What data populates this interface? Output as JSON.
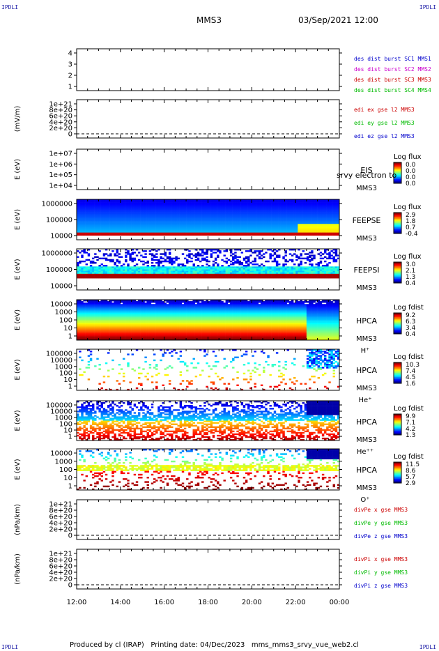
{
  "corner_label": "IPDLI",
  "header": {
    "title": "MMS3",
    "date": "03/Sep/2021 12:00"
  },
  "footer": {
    "produced_by": "Produced by cl (IRAP)",
    "printing_date": "Printing date: 04/Dec/2023",
    "filename": "mms_mms3_srvy_vue_web2.cl"
  },
  "colors": {
    "mms1": "#0000cc",
    "mms2": "#cc00cc",
    "mms3": "#cc0000",
    "mms4": "#00bb00",
    "axis": "#000000"
  },
  "chart_data": [
    {
      "type": "line",
      "panel": "burst",
      "ylabel": "",
      "yticks": [
        "4",
        "3",
        "2",
        "1"
      ],
      "legend": [
        {
          "text": "des dist burst SC1 MMS1",
          "color": "#0000cc"
        },
        {
          "text": "des dist burst SC2 MMS2",
          "color": "#cc00cc"
        },
        {
          "text": "des dist burst SC3 MMS3",
          "color": "#cc0000"
        },
        {
          "text": "des dist burst SC4 MMS4",
          "color": "#00bb00"
        }
      ]
    },
    {
      "type": "line",
      "panel": "edi",
      "ylabel": "(mV/m)",
      "yticks": [
        "1e+21",
        "8e+20",
        "6e+20",
        "4e+20",
        "2e+20",
        "0"
      ],
      "legend": [
        {
          "text": "edi ex gse l2 MMS3",
          "color": "#cc0000"
        },
        {
          "text": "edi ey gse l2 MMS3",
          "color": "#00bb00"
        },
        {
          "text": "edi ez gse l2 MMS3",
          "color": "#0000cc"
        }
      ]
    },
    {
      "type": "heatmap",
      "panel": "eis",
      "ylabel": "E (eV)",
      "yticks": [
        "1e+07",
        "1e+06",
        "1e+05",
        "1e+04"
      ],
      "labels": [
        "EIS",
        "MMS3"
      ],
      "overlay": "srvy electron to",
      "cbar_title": "Log flux",
      "cbar_ticks": [
        "0.0",
        "0.0",
        "0.0",
        "0.0"
      ]
    },
    {
      "type": "heatmap",
      "panel": "feepse",
      "ylabel": "E (eV)",
      "yticks": [
        "1000000",
        "100000",
        "10000"
      ],
      "labels": [
        "FEEPSE",
        "MMS3"
      ],
      "cbar_title": "Log flux",
      "cbar_ticks": [
        "2.9",
        "1.8",
        "0.7",
        "-0.4"
      ]
    },
    {
      "type": "heatmap",
      "panel": "feepsi",
      "ylabel": "E (eV)",
      "yticks": [
        "1000000",
        "100000",
        "10000"
      ],
      "labels": [
        "FEEPSI",
        "MMS3"
      ],
      "cbar_title": "Log flux",
      "cbar_ticks": [
        "3.0",
        "2.1",
        "1.3",
        "0.4"
      ]
    },
    {
      "type": "heatmap",
      "panel": "hpca_h",
      "ylabel": "E (eV)",
      "yticks": [
        "10000",
        "1000",
        "100",
        "10",
        "1"
      ],
      "labels": [
        "HPCA",
        "MMS3",
        "H⁺"
      ],
      "cbar_title": "Log fdist",
      "cbar_ticks": [
        "9.2",
        "6.3",
        "3.4",
        "0.4"
      ]
    },
    {
      "type": "heatmap",
      "panel": "hpca_he",
      "ylabel": "E (eV)",
      "yticks": [
        "100000",
        "10000",
        "1000",
        "100",
        "10",
        "1"
      ],
      "labels": [
        "HPCA",
        "MMS3",
        "He⁺"
      ],
      "cbar_title": "Log fdist",
      "cbar_ticks": [
        "10.3",
        "7.4",
        "4.5",
        "1.6"
      ]
    },
    {
      "type": "heatmap",
      "panel": "hpca_he2",
      "ylabel": "E (eV)",
      "yticks": [
        "100000",
        "10000",
        "1000",
        "100",
        "10",
        "1"
      ],
      "labels": [
        "HPCA",
        "MMS3",
        "He⁺⁺"
      ],
      "cbar_title": "Log fdist",
      "cbar_ticks": [
        "9.9",
        "7.1",
        "4.2",
        "1.3"
      ]
    },
    {
      "type": "heatmap",
      "panel": "hpca_o",
      "ylabel": "E (eV)",
      "yticks": [
        "10000",
        "1000",
        "100",
        "10",
        "1"
      ],
      "labels": [
        "HPCA",
        "MMS3",
        "O⁺"
      ],
      "cbar_title": "Log fdist",
      "cbar_ticks": [
        "11.5",
        "8.6",
        "5.7",
        "2.9"
      ]
    },
    {
      "type": "line",
      "panel": "divpe",
      "ylabel": "(nPa/km)",
      "yticks": [
        "1e+21",
        "8e+20",
        "6e+20",
        "4e+20",
        "2e+20",
        "0"
      ],
      "legend": [
        {
          "text": "divPe x gse MMS3",
          "color": "#cc0000"
        },
        {
          "text": "divPe y gse MMS3",
          "color": "#00bb00"
        },
        {
          "text": "divPe z gse MMS3",
          "color": "#0000cc"
        }
      ]
    },
    {
      "type": "line",
      "panel": "divpi",
      "ylabel": "(nPa/km)",
      "yticks": [
        "1e+21",
        "8e+20",
        "6e+20",
        "4e+20",
        "2e+20",
        "0"
      ],
      "legend": [
        {
          "text": "divPi x gse MMS3",
          "color": "#cc0000"
        },
        {
          "text": "divPi y gse MMS3",
          "color": "#00bb00"
        },
        {
          "text": "divPi z gse MMS3",
          "color": "#0000cc"
        }
      ]
    }
  ],
  "x_axis": {
    "ticks": [
      "12:00",
      "14:00",
      "16:00",
      "18:00",
      "20:00",
      "22:00",
      "00:00"
    ]
  }
}
